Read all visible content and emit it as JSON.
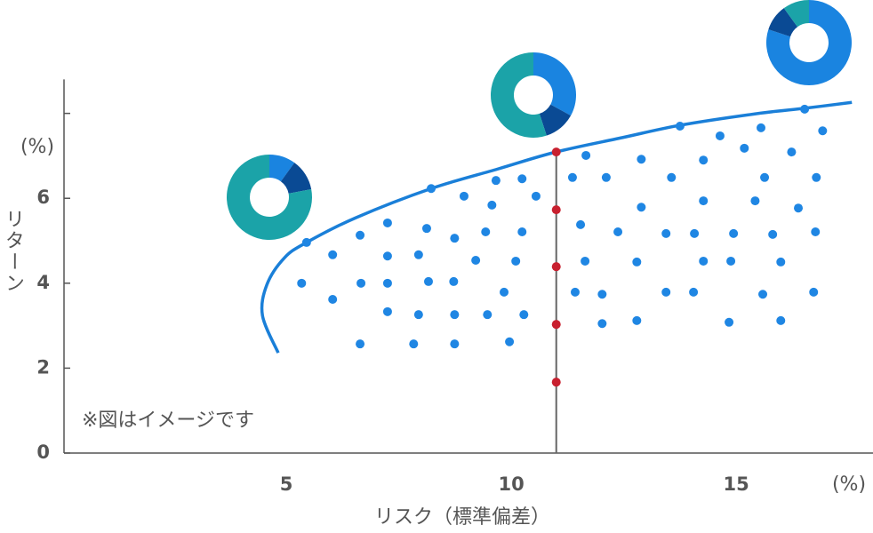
{
  "chart_data": {
    "type": "scatter",
    "xlabel": "リスク（標準偏差）",
    "ylabel": "リターン",
    "x_unit": "(%)",
    "y_unit": "(%)",
    "annotation": "※図はイメージです",
    "xlim": [
      0,
      18
    ],
    "ylim": [
      0,
      8.8
    ],
    "xticks": [
      5,
      10,
      15
    ],
    "yticks": [
      0,
      2,
      4,
      6
    ],
    "minor_yticks": [
      8
    ],
    "series": [
      {
        "color": "#1f86e3",
        "x": [
          5.45,
          6.03,
          6.64,
          7.25,
          8.12,
          8.74,
          9.43,
          10.24,
          10.55,
          9.66,
          10.24,
          8.95,
          9.57,
          8.22,
          5.34,
          6.03,
          6.66,
          7.25,
          7.25,
          7.94,
          8.16,
          8.72,
          9.21,
          10.1,
          9.84,
          7.25,
          7.94,
          8.74,
          9.47,
          10.28,
          6.64,
          7.83,
          8.74,
          9.96,
          11.66,
          12.89,
          13.75,
          14.64,
          15.55,
          16.52,
          16.92,
          11.36,
          12.11,
          13.56,
          14.27,
          15.18,
          16.23,
          16.78,
          15.63,
          11.54,
          12.89,
          14.27,
          15.42,
          16.38,
          12.37,
          13.44,
          14.07,
          14.94,
          15.81,
          16.76,
          11.64,
          12.79,
          14.27,
          14.88,
          15.99,
          11.42,
          12.02,
          13.44,
          14.05,
          15.59,
          16.72,
          12.02,
          12.79,
          14.84,
          15.99
        ],
        "y": [
          4.96,
          4.67,
          5.13,
          5.42,
          5.29,
          5.06,
          5.21,
          5.21,
          6.05,
          6.42,
          6.46,
          6.05,
          5.84,
          6.23,
          4.0,
          3.62,
          4.0,
          4.0,
          4.64,
          4.67,
          4.04,
          4.04,
          4.54,
          4.52,
          3.79,
          3.33,
          3.26,
          3.26,
          3.26,
          3.26,
          2.57,
          2.57,
          2.57,
          2.62,
          7.01,
          6.92,
          7.7,
          7.47,
          7.66,
          8.1,
          7.59,
          6.49,
          6.49,
          6.49,
          6.9,
          7.18,
          7.09,
          6.49,
          6.49,
          5.38,
          5.79,
          5.94,
          5.94,
          5.77,
          5.21,
          5.17,
          5.17,
          5.17,
          5.15,
          5.21,
          4.52,
          4.5,
          4.52,
          4.52,
          4.5,
          3.79,
          3.74,
          3.79,
          3.79,
          3.74,
          3.79,
          3.05,
          3.12,
          3.08,
          3.12
        ]
      },
      {
        "color": "#c8202f",
        "x": [
          11,
          11,
          11,
          11,
          11
        ],
        "y": [
          7.09,
          5.73,
          4.39,
          3.03,
          1.67
        ]
      }
    ],
    "frontier": {
      "color": "#1a7fd8",
      "x": [
        4.82,
        4.47,
        4.57,
        4.96,
        5.45,
        6.54,
        8.22,
        9.7,
        10.99,
        12.47,
        13.75,
        15.43,
        16.52,
        17.57
      ],
      "y": [
        2.36,
        3.24,
        3.97,
        4.6,
        4.96,
        5.54,
        6.23,
        6.69,
        7.09,
        7.43,
        7.72,
        7.99,
        8.12,
        8.26
      ]
    },
    "vline": {
      "x": 11,
      "color": "#666666"
    },
    "donuts": {
      "colors": [
        "#1a84e0",
        "#0a4a94",
        "#1ba3a8"
      ],
      "values": [
        [
          10,
          12,
          78
        ],
        [
          33,
          12,
          55
        ],
        [
          80,
          10,
          10
        ]
      ]
    }
  }
}
